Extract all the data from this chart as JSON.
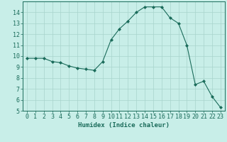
{
  "x": [
    0,
    1,
    2,
    3,
    4,
    5,
    6,
    7,
    8,
    9,
    10,
    11,
    12,
    13,
    14,
    15,
    16,
    17,
    18,
    19,
    20,
    21,
    22,
    23
  ],
  "y": [
    9.8,
    9.8,
    9.8,
    9.5,
    9.4,
    9.1,
    8.9,
    8.8,
    8.7,
    9.5,
    11.5,
    12.5,
    13.2,
    14.0,
    14.5,
    14.5,
    14.5,
    13.5,
    13.0,
    11.0,
    7.4,
    7.7,
    6.3,
    5.3
  ],
  "line_color": "#1a6b5a",
  "marker": "D",
  "marker_size": 2.0,
  "bg_color": "#c8eee8",
  "grid_color": "#a8d4cc",
  "xlabel": "Humidex (Indice chaleur)",
  "xlim": [
    -0.5,
    23.5
  ],
  "ylim": [
    5,
    15
  ],
  "yticks": [
    5,
    6,
    7,
    8,
    9,
    10,
    11,
    12,
    13,
    14
  ],
  "xtick_labels": [
    "0",
    "1",
    "2",
    "3",
    "4",
    "5",
    "6",
    "7",
    "8",
    "9",
    "10",
    "11",
    "12",
    "13",
    "14",
    "15",
    "16",
    "17",
    "18",
    "19",
    "20",
    "21",
    "22",
    "23"
  ],
  "label_fontsize": 6.5,
  "tick_fontsize": 6.0
}
